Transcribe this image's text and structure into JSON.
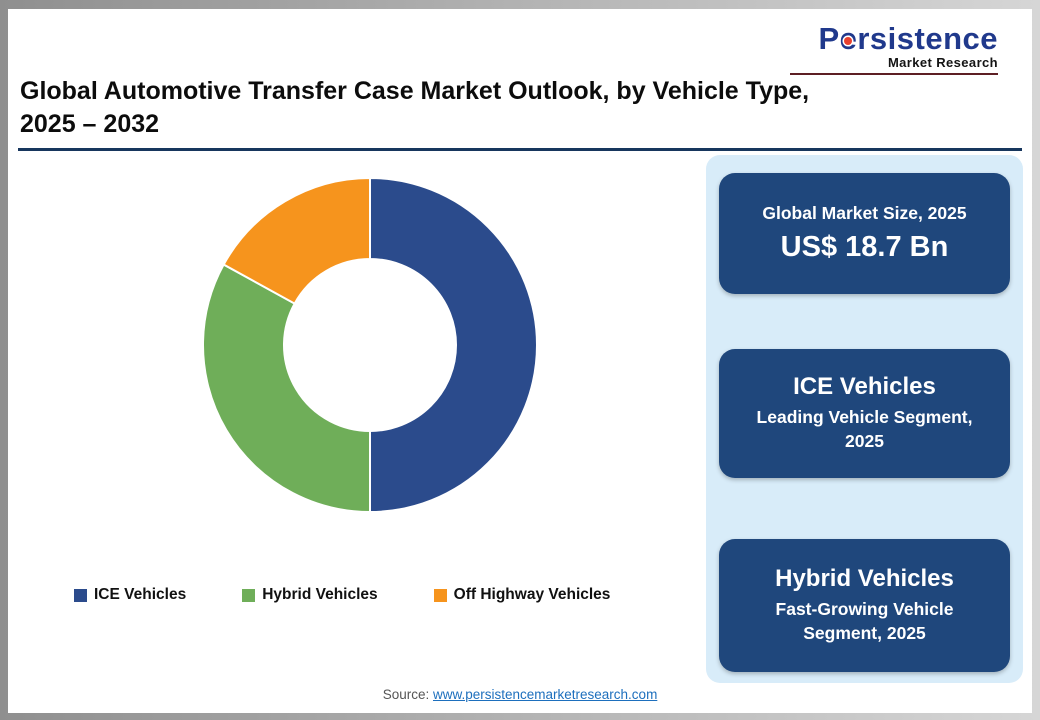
{
  "logo": {
    "name": "Persistence",
    "subtitle": "Market Research"
  },
  "header": {
    "title_line1": "Global Automotive Transfer Case Market Outlook, by Vehicle Type,",
    "title_line2": "2025 – 2032"
  },
  "chart_data": {
    "type": "pie",
    "donut": true,
    "title": "Global Automotive Transfer Case Market Outlook, by Vehicle Type, 2025 – 2032",
    "categories": [
      "ICE Vehicles",
      "Hybrid Vehicles",
      "Off Highway Vehicles"
    ],
    "values": [
      50,
      33,
      17
    ],
    "colors": [
      "#2b4b8c",
      "#6fae59",
      "#f6941d"
    ],
    "start_angle_deg": 0,
    "direction": "clockwise",
    "legend_position": "bottom"
  },
  "legend": {
    "items": [
      {
        "label": "ICE Vehicles",
        "color": "#2b4b8c"
      },
      {
        "label": "Hybrid Vehicles",
        "color": "#6fae59"
      },
      {
        "label": "Off Highway Vehicles",
        "color": "#f6941d"
      }
    ]
  },
  "sidebar": {
    "cards": [
      {
        "line1": "Global Market Size, 2025",
        "line2": "US$ 18.7 Bn"
      },
      {
        "line1": "ICE Vehicles",
        "line2": "Leading Vehicle Segment, 2025"
      },
      {
        "line1": "Hybrid Vehicles",
        "line2": "Fast-Growing Vehicle Segment, 2025"
      }
    ]
  },
  "footer": {
    "source_label": "Source:",
    "source_link": "www.persistencemarketresearch.com"
  }
}
